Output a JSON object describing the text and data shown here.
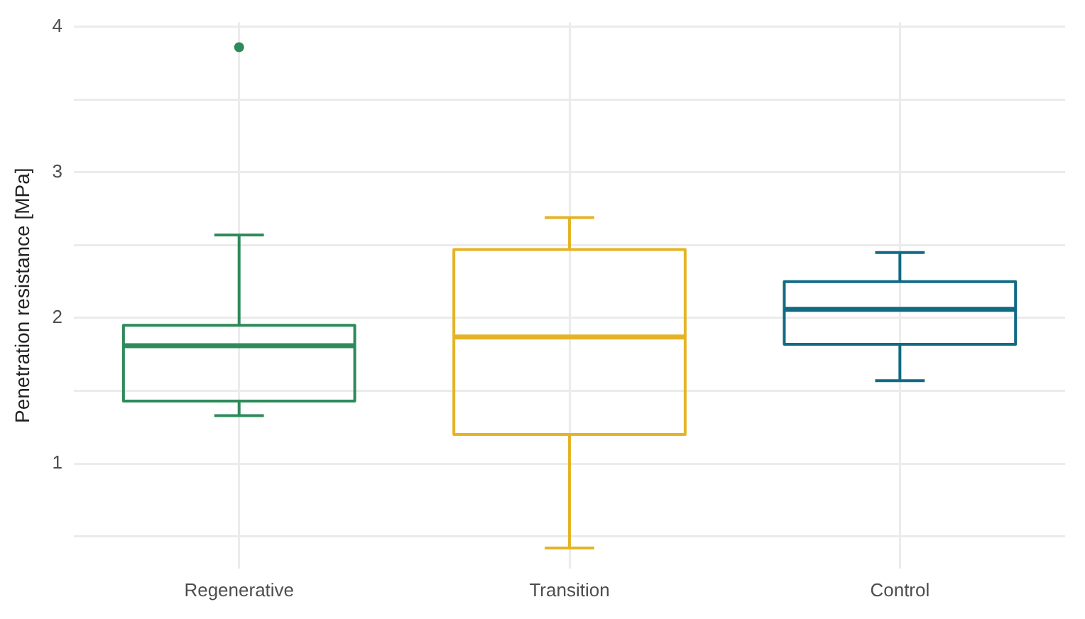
{
  "chart_data": {
    "type": "box",
    "ylabel": "Penetration resistance [MPa]",
    "categories": [
      "Regenerative",
      "Transition",
      "Control"
    ],
    "colors": [
      "#2e8a5a",
      "#e5b325",
      "#116a84"
    ],
    "boxes": [
      {
        "low": 1.33,
        "q1": 1.43,
        "median": 1.81,
        "q3": 1.95,
        "high": 2.57,
        "outliers": [
          3.86
        ]
      },
      {
        "low": 0.42,
        "q1": 1.2,
        "median": 1.87,
        "q3": 2.47,
        "high": 2.69
      },
      {
        "low": 1.57,
        "q1": 1.82,
        "median": 2.06,
        "q3": 2.25,
        "high": 2.45
      }
    ],
    "ylim": [
      0.28,
      4.03
    ],
    "yticks": [
      {
        "value": 0.5,
        "label": null
      },
      1,
      {
        "value": 1.5,
        "label": null
      },
      2,
      {
        "value": 2.5,
        "label": null
      },
      3,
      {
        "value": 3.5,
        "label": null
      },
      4
    ],
    "grid": true,
    "legend": false
  }
}
